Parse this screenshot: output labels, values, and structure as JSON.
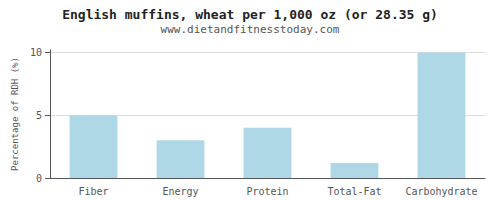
{
  "chart_data": {
    "type": "bar",
    "title": "English muffins, wheat per 1,000 oz (or 28.35 g)",
    "subtitle": "www.dietandfitnesstoday.com",
    "ylabel": "Percentage of RDH (%)",
    "categories": [
      "Fiber",
      "Energy",
      "Protein",
      "Total-Fat",
      "Carbohydrate"
    ],
    "values": [
      5.0,
      3.0,
      4.0,
      1.2,
      10.0
    ],
    "color": "#aed8e6",
    "ylim": [
      0,
      10.2
    ],
    "yticks": [
      0,
      5,
      10
    ],
    "grid": true
  }
}
